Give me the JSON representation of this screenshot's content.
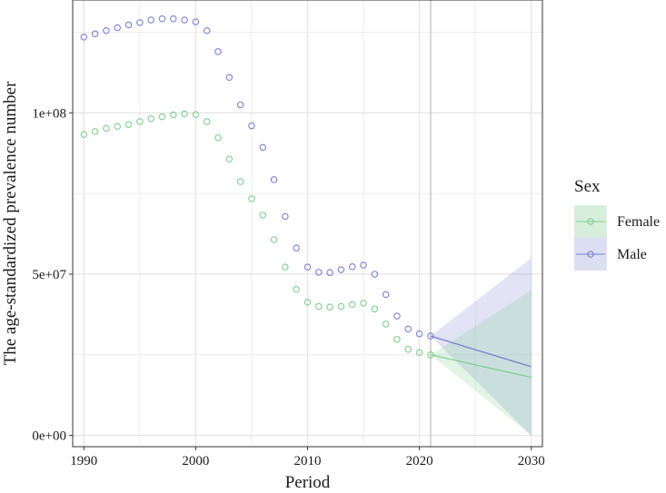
{
  "chart_data": {
    "type": "scatter",
    "title": "",
    "xlabel": "Period",
    "ylabel": "The age-standardized prevalence number",
    "xlim": [
      1989,
      2031
    ],
    "ylim": [
      -3500000,
      135000000
    ],
    "x_ticks": [
      1990,
      2000,
      2010,
      2020,
      2030
    ],
    "x_tick_labels": [
      "1990",
      "2000",
      "2010",
      "2020",
      "2030"
    ],
    "y_ticks": [
      0,
      50000000,
      100000000
    ],
    "y_tick_labels": [
      "0e+00",
      "5e+07",
      "1e+08"
    ],
    "grid": true,
    "reference_line_x": 2021,
    "legend": {
      "title": "Sex",
      "position": "right",
      "entries": [
        "Female",
        "Male"
      ]
    },
    "colors": {
      "Female": "#7dcf8e",
      "Male": "#7b7fd0",
      "Female_band": "#d8eedd",
      "Male_band": "#dcdff2",
      "overlap_band": "#cfdddd",
      "panel_border": "#333333",
      "grid": "#e6e6e6",
      "vline": "#c8c8c8"
    },
    "series": [
      {
        "name": "Female",
        "x": [
          1990,
          1991,
          1992,
          1993,
          1994,
          1995,
          1996,
          1997,
          1998,
          1999,
          2000,
          2001,
          2002,
          2003,
          2004,
          2005,
          2006,
          2007,
          2008,
          2009,
          2010,
          2011,
          2012,
          2013,
          2014,
          2015,
          2016,
          2017,
          2018,
          2019,
          2020,
          2021
        ],
        "values": [
          93300000,
          94200000,
          95200000,
          95800000,
          96400000,
          97300000,
          98200000,
          98800000,
          99400000,
          99700000,
          99500000,
          97300000,
          92300000,
          85700000,
          78700000,
          73400000,
          68300000,
          60700000,
          52200000,
          45300000,
          41300000,
          40000000,
          39800000,
          40000000,
          40600000,
          41000000,
          39200000,
          34500000,
          29800000,
          26700000,
          25700000,
          25000000
        ]
      },
      {
        "name": "Male",
        "x": [
          1990,
          1991,
          1992,
          1993,
          1994,
          1995,
          1996,
          1997,
          1998,
          1999,
          2000,
          2001,
          2002,
          2003,
          2004,
          2005,
          2006,
          2007,
          2008,
          2009,
          2010,
          2011,
          2012,
          2013,
          2014,
          2015,
          2016,
          2017,
          2018,
          2019,
          2020,
          2021
        ],
        "values": [
          123500000,
          124500000,
          125500000,
          126400000,
          127300000,
          128000000,
          128800000,
          129200000,
          129200000,
          128800000,
          128200000,
          125500000,
          119000000,
          111000000,
          102500000,
          96000000,
          89300000,
          79300000,
          67900000,
          58100000,
          52200000,
          50600000,
          50500000,
          51400000,
          52300000,
          52800000,
          50000000,
          43700000,
          37000000,
          33000000,
          31500000,
          30800000
        ]
      }
    ],
    "projections": [
      {
        "name": "Female",
        "x": [
          2021,
          2030
        ],
        "values": [
          25000000,
          18000000
        ],
        "lower": [
          25000000,
          0
        ],
        "upper": [
          25000000,
          45000000
        ]
      },
      {
        "name": "Male",
        "x": [
          2021,
          2030
        ],
        "values": [
          30800000,
          21300000
        ],
        "lower": [
          30800000,
          0
        ],
        "upper": [
          30800000,
          55000000
        ]
      }
    ]
  }
}
